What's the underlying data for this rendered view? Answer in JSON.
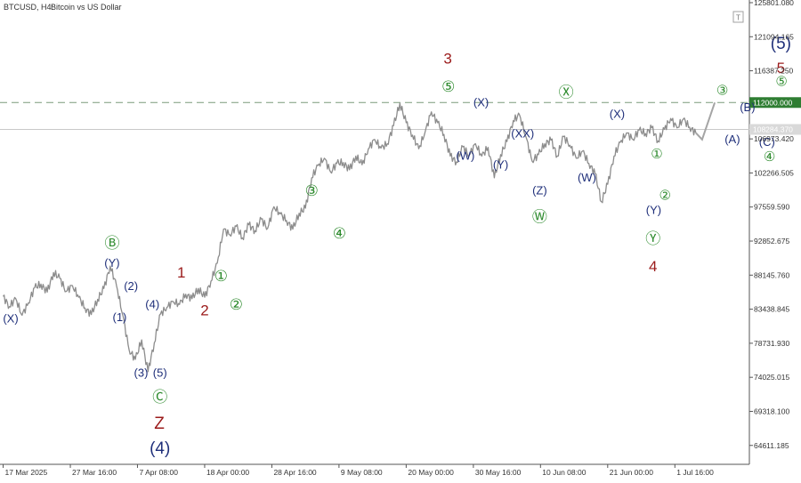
{
  "header": {
    "symbol": "BTCUSD, H4:",
    "description": "Bitcoin vs US Dollar"
  },
  "colors": {
    "price_line": "#8c8c8c",
    "dashed_level": "#7a9a7a",
    "current_price_line": "#c8c8c8",
    "label_green": "#2e8b2e",
    "label_navy": "#1f2f7a",
    "label_darkred": "#9b1b1b",
    "axis_text": "#333333",
    "frame": "#555555"
  },
  "chart_data": {
    "type": "line",
    "title": "",
    "xlabel": "",
    "ylabel": "",
    "ylim": [
      62000,
      125801.08
    ],
    "y_ticks": [
      {
        "label": "125801.080",
        "value": 125801.08
      },
      {
        "label": "121094.165",
        "value": 121094.165
      },
      {
        "label": "116387.250",
        "value": 116387.25
      },
      {
        "label": "106973.420",
        "value": 106973.42
      },
      {
        "label": "102266.505",
        "value": 102266.505
      },
      {
        "label": "97559.590",
        "value": 97559.59
      },
      {
        "label": "92852.675",
        "value": 92852.675
      },
      {
        "label": "88145.760",
        "value": 88145.76
      },
      {
        "label": "83438.845",
        "value": 83438.845
      },
      {
        "label": "78731.930",
        "value": 78731.93
      },
      {
        "label": "74025.015",
        "value": 74025.015
      },
      {
        "label": "69318.100",
        "value": 69318.1
      },
      {
        "label": "64611.185",
        "value": 64611.185
      }
    ],
    "x_ticks": [
      {
        "label": "17 Mar 2025",
        "t": 0
      },
      {
        "label": "27 Mar 16:00",
        "t": 10.67
      },
      {
        "label": "7 Apr 08:00",
        "t": 21.33
      },
      {
        "label": "18 Apr 00:00",
        "t": 32
      },
      {
        "label": "28 Apr 16:00",
        "t": 42.67
      },
      {
        "label": "9 May 08:00",
        "t": 53.33
      },
      {
        "label": "20 May 00:00",
        "t": 64
      },
      {
        "label": "30 May 16:00",
        "t": 74.67
      },
      {
        "label": "10 Jun 08:00",
        "t": 85.33
      },
      {
        "label": "21 Jun 00:00",
        "t": 96
      },
      {
        "label": "1 Jul 16:00",
        "t": 106.67
      }
    ],
    "x_range": [
      -0.5,
      118.5
    ],
    "levels": [
      {
        "label": "112000.000",
        "value": 112000,
        "style": "dashed"
      },
      {
        "label": "108284.370",
        "value": 108284.37,
        "style": "solid"
      }
    ],
    "price_path": [
      [
        0,
        85200
      ],
      [
        1,
        83800
      ],
      [
        2,
        84900
      ],
      [
        3,
        82600
      ],
      [
        4,
        84300
      ],
      [
        5,
        86400
      ],
      [
        6,
        86900
      ],
      [
        7,
        85800
      ],
      [
        8,
        88500
      ],
      [
        9,
        87700
      ],
      [
        10,
        85900
      ],
      [
        11,
        86700
      ],
      [
        12,
        85100
      ],
      [
        13,
        83600
      ],
      [
        14,
        82700
      ],
      [
        15,
        84800
      ],
      [
        16,
        86300
      ],
      [
        17,
        89400
      ],
      [
        18,
        86700
      ],
      [
        19,
        82600
      ],
      [
        20,
        77800
      ],
      [
        21,
        76500
      ],
      [
        22,
        79200
      ],
      [
        23,
        74800
      ],
      [
        24,
        78800
      ],
      [
        25,
        82800
      ],
      [
        26,
        83700
      ],
      [
        27,
        84500
      ],
      [
        28,
        84100
      ],
      [
        29,
        85500
      ],
      [
        30,
        84900
      ],
      [
        31,
        86300
      ],
      [
        32,
        85100
      ],
      [
        33,
        87300
      ],
      [
        34,
        89800
      ],
      [
        35,
        94500
      ],
      [
        36,
        93700
      ],
      [
        37,
        94900
      ],
      [
        38,
        93300
      ],
      [
        39,
        95100
      ],
      [
        40,
        94300
      ],
      [
        41,
        95900
      ],
      [
        42,
        94600
      ],
      [
        43,
        97600
      ],
      [
        44,
        96600
      ],
      [
        45,
        95700
      ],
      [
        46,
        94500
      ],
      [
        47,
        96700
      ],
      [
        48,
        97400
      ],
      [
        49,
        101600
      ],
      [
        50,
        103300
      ],
      [
        51,
        104300
      ],
      [
        52,
        102400
      ],
      [
        53,
        103600
      ],
      [
        54,
        103700
      ],
      [
        55,
        102700
      ],
      [
        56,
        104600
      ],
      [
        57,
        103400
      ],
      [
        58,
        105600
      ],
      [
        59,
        106900
      ],
      [
        60,
        105700
      ],
      [
        61,
        106300
      ],
      [
        62,
        108800
      ],
      [
        63,
        111900
      ],
      [
        64,
        109200
      ],
      [
        65,
        107500
      ],
      [
        66,
        105600
      ],
      [
        67,
        107900
      ],
      [
        68,
        110700
      ],
      [
        69,
        109200
      ],
      [
        70,
        107600
      ],
      [
        71,
        104600
      ],
      [
        72,
        103800
      ],
      [
        73,
        105900
      ],
      [
        74,
        104700
      ],
      [
        75,
        106300
      ],
      [
        76,
        104600
      ],
      [
        77,
        105800
      ],
      [
        78,
        101600
      ],
      [
        79,
        104800
      ],
      [
        80,
        106600
      ],
      [
        81,
        109500
      ],
      [
        82,
        110300
      ],
      [
        83,
        107300
      ],
      [
        84,
        103900
      ],
      [
        85,
        104800
      ],
      [
        86,
        106300
      ],
      [
        87,
        106800
      ],
      [
        88,
        104600
      ],
      [
        89,
        107300
      ],
      [
        90,
        106100
      ],
      [
        91,
        104300
      ],
      [
        92,
        105300
      ],
      [
        93,
        103600
      ],
      [
        94,
        102200
      ],
      [
        95,
        98300
      ],
      [
        96,
        100700
      ],
      [
        97,
        104600
      ],
      [
        98,
        106500
      ],
      [
        99,
        107800
      ],
      [
        100,
        106900
      ],
      [
        101,
        108200
      ],
      [
        102,
        107700
      ],
      [
        103,
        108500
      ],
      [
        104,
        106700
      ],
      [
        105,
        108300
      ],
      [
        106,
        109800
      ],
      [
        107,
        108500
      ],
      [
        108,
        109700
      ],
      [
        109,
        108600
      ],
      [
        110,
        107800
      ]
    ],
    "forecast_path": [
      [
        110,
        107800
      ],
      [
        111,
        106900
      ],
      [
        113,
        112000
      ]
    ],
    "current_price_marker": {
      "label": "108284.370",
      "value": 108284.37
    }
  },
  "wave_labels": [
    {
      "text": "(X)",
      "t": 1.2,
      "y": 81600,
      "color": "navy",
      "size": 13
    },
    {
      "text": "Ⓑ",
      "t": 17.3,
      "y": 91900,
      "color": "green",
      "size": 17
    },
    {
      "text": "(Y)",
      "t": 17.3,
      "y": 89300,
      "color": "navy",
      "size": 13
    },
    {
      "text": "(2)",
      "t": 20.3,
      "y": 86100,
      "color": "navy",
      "size": 13
    },
    {
      "text": "(1)",
      "t": 18.5,
      "y": 81800,
      "color": "navy",
      "size": 13
    },
    {
      "text": "(4)",
      "t": 23.7,
      "y": 83600,
      "color": "navy",
      "size": 13
    },
    {
      "text": "(3)",
      "t": 21.9,
      "y": 74100,
      "color": "navy",
      "size": 13
    },
    {
      "text": "(5)",
      "t": 24.9,
      "y": 74100,
      "color": "navy",
      "size": 13
    },
    {
      "text": "Ⓒ",
      "t": 24.9,
      "y": 70600,
      "color": "green",
      "size": 17
    },
    {
      "text": "Z",
      "t": 24.8,
      "y": 66900,
      "color": "darkred",
      "size": 19
    },
    {
      "text": "(4)",
      "t": 24.9,
      "y": 63500,
      "color": "navy",
      "size": 19
    },
    {
      "text": "1",
      "t": 28.3,
      "y": 87800,
      "color": "darkred",
      "size": 17
    },
    {
      "text": "①",
      "t": 34.6,
      "y": 87300,
      "color": "green",
      "size": 17
    },
    {
      "text": "2",
      "t": 32.0,
      "y": 82600,
      "color": "darkred",
      "size": 17
    },
    {
      "text": "②",
      "t": 37.0,
      "y": 83400,
      "color": "green",
      "size": 17
    },
    {
      "text": "③",
      "t": 49.0,
      "y": 99100,
      "color": "green",
      "size": 17
    },
    {
      "text": "④",
      "t": 53.4,
      "y": 93200,
      "color": "green",
      "size": 17
    },
    {
      "text": "3",
      "t": 70.6,
      "y": 117400,
      "color": "darkred",
      "size": 17
    },
    {
      "text": "⑤",
      "t": 70.7,
      "y": 113500,
      "color": "green",
      "size": 17
    },
    {
      "text": "(X)",
      "t": 75.9,
      "y": 111500,
      "color": "navy",
      "size": 13
    },
    {
      "text": "(W)",
      "t": 73.4,
      "y": 104100,
      "color": "navy",
      "size": 13
    },
    {
      "text": "(XX)",
      "t": 82.5,
      "y": 107200,
      "color": "navy",
      "size": 13
    },
    {
      "text": "(Y)",
      "t": 79.0,
      "y": 102900,
      "color": "navy",
      "size": 13
    },
    {
      "text": "(Z)",
      "t": 85.2,
      "y": 99300,
      "color": "navy",
      "size": 13
    },
    {
      "text": "Ⓦ",
      "t": 85.2,
      "y": 95500,
      "color": "green",
      "size": 17
    },
    {
      "text": "Ⓧ",
      "t": 89.4,
      "y": 112700,
      "color": "green",
      "size": 17
    },
    {
      "text": "(X)",
      "t": 97.5,
      "y": 109900,
      "color": "navy",
      "size": 13
    },
    {
      "text": "(W)",
      "t": 92.7,
      "y": 101100,
      "color": "navy",
      "size": 13
    },
    {
      "text": "①",
      "t": 103.8,
      "y": 104300,
      "color": "green",
      "size": 15
    },
    {
      "text": "②",
      "t": 105.1,
      "y": 98600,
      "color": "green",
      "size": 15
    },
    {
      "text": "(Y)",
      "t": 103.3,
      "y": 96600,
      "color": "navy",
      "size": 13
    },
    {
      "text": "Ⓨ",
      "t": 103.2,
      "y": 92500,
      "color": "green",
      "size": 17
    },
    {
      "text": "4",
      "t": 103.2,
      "y": 88700,
      "color": "darkred",
      "size": 17
    },
    {
      "text": "③",
      "t": 114.2,
      "y": 113100,
      "color": "green",
      "size": 15
    },
    {
      "text": "(B)",
      "t": 118.2,
      "y": 110800,
      "color": "navy",
      "size": 13
    },
    {
      "text": "(A)",
      "t": 115.8,
      "y": 106400,
      "color": "navy",
      "size": 13
    },
    {
      "text": "(C)",
      "t": 121.3,
      "y": 106000,
      "color": "navy",
      "size": 13
    },
    {
      "text": "④",
      "t": 121.7,
      "y": 103900,
      "color": "green",
      "size": 15
    },
    {
      "text": "(5)",
      "t": 123.5,
      "y": 119400,
      "color": "navy",
      "size": 19
    },
    {
      "text": "5",
      "t": 123.5,
      "y": 116100,
      "color": "darkred",
      "size": 17
    },
    {
      "text": "⑤",
      "t": 123.6,
      "y": 114300,
      "color": "green",
      "size": 15
    }
  ]
}
